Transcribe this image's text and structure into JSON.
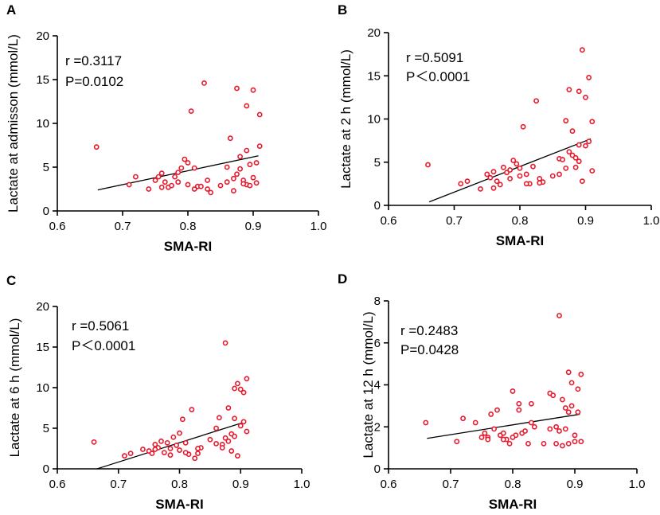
{
  "chart_data": [
    {
      "type": "scatter",
      "panel": "A",
      "xlabel": "SMA-RI",
      "ylabel": "Lactate at admisson (mmol/L)",
      "xlim": [
        0.6,
        1.0
      ],
      "ylim": [
        0,
        20
      ],
      "xticks": [
        0.6,
        0.7,
        0.8,
        0.9,
        1.0
      ],
      "xtick_labels": [
        "0.6",
        "0.7",
        "0.8",
        "0.9",
        "1.0"
      ],
      "yticks": [
        0,
        5,
        10,
        15,
        20
      ],
      "ytick_labels": [
        "0",
        "5",
        "10",
        "15",
        "20"
      ],
      "stats": {
        "r": "r =0.3117",
        "p": "P=0.0102"
      },
      "regression": {
        "x": [
          0.662,
          0.908
        ],
        "y": [
          2.4,
          6.3
        ]
      },
      "x": [
        0.66,
        0.71,
        0.72,
        0.74,
        0.75,
        0.755,
        0.76,
        0.765,
        0.77,
        0.775,
        0.78,
        0.785,
        0.79,
        0.795,
        0.8,
        0.805,
        0.81,
        0.815,
        0.82,
        0.825,
        0.83,
        0.835,
        0.85,
        0.86,
        0.865,
        0.87,
        0.875,
        0.88,
        0.885,
        0.89,
        0.89,
        0.895,
        0.9,
        0.905,
        0.91,
        0.76,
        0.785,
        0.8,
        0.81,
        0.83,
        0.87,
        0.88,
        0.89,
        0.9,
        0.86,
        0.875,
        0.885,
        0.895,
        0.91,
        0.905
      ],
      "y": [
        7.3,
        3.0,
        3.9,
        2.5,
        3.5,
        3.9,
        4.3,
        3.3,
        2.7,
        2.9,
        3.9,
        3.3,
        4.9,
        5.9,
        3.0,
        11.4,
        4.9,
        2.8,
        2.8,
        14.6,
        3.5,
        2.1,
        2.9,
        3.3,
        8.3,
        3.7,
        14.0,
        6.2,
        3.5,
        12.0,
        6.9,
        5.3,
        13.8,
        5.5,
        11.0,
        2.7,
        4.4,
        5.5,
        2.5,
        2.5,
        2.3,
        4.8,
        3.0,
        3.8,
        5.0,
        4.2,
        3.1,
        2.9,
        7.4,
        3.2
      ]
    },
    {
      "type": "scatter",
      "panel": "B",
      "xlabel": "SMA-RI",
      "ylabel": "Lactate at 2 h (mmol/L)",
      "xlim": [
        0.6,
        1.0
      ],
      "ylim": [
        0,
        20
      ],
      "xticks": [
        0.6,
        0.7,
        0.8,
        0.9,
        1.0
      ],
      "xtick_labels": [
        "0.6",
        "0.7",
        "0.8",
        "0.9",
        "1.0"
      ],
      "yticks": [
        0,
        5,
        10,
        15,
        20
      ],
      "ytick_labels": [
        "0",
        "5",
        "10",
        "15",
        "20"
      ],
      "stats": {
        "r": "r =0.5091",
        "p": "P＜0.0001"
      },
      "regression": {
        "x": [
          0.662,
          0.908
        ],
        "y": [
          0.4,
          7.7
        ]
      },
      "x": [
        0.66,
        0.71,
        0.72,
        0.74,
        0.75,
        0.755,
        0.76,
        0.765,
        0.77,
        0.775,
        0.78,
        0.785,
        0.79,
        0.795,
        0.8,
        0.805,
        0.81,
        0.815,
        0.82,
        0.825,
        0.83,
        0.835,
        0.85,
        0.86,
        0.865,
        0.87,
        0.875,
        0.88,
        0.885,
        0.89,
        0.89,
        0.895,
        0.9,
        0.905,
        0.91,
        0.76,
        0.785,
        0.8,
        0.81,
        0.83,
        0.87,
        0.88,
        0.89,
        0.9,
        0.86,
        0.875,
        0.885,
        0.895,
        0.91,
        0.905
      ],
      "y": [
        4.7,
        2.5,
        2.8,
        1.9,
        3.6,
        3.2,
        3.9,
        2.8,
        2.4,
        4.4,
        3.8,
        4.1,
        5.2,
        4.8,
        4.3,
        9.1,
        3.6,
        2.5,
        4.5,
        12.1,
        3.1,
        2.7,
        3.4,
        5.4,
        5.3,
        9.8,
        13.4,
        8.6,
        4.4,
        13.2,
        7.0,
        18.0,
        12.5,
        14.8,
        9.7,
        2.0,
        3.1,
        3.4,
        2.5,
        2.6,
        4.3,
        5.8,
        5.1,
        6.9,
        3.6,
        6.2,
        5.5,
        2.8,
        4.0,
        7.4
      ]
    },
    {
      "type": "scatter",
      "panel": "C",
      "xlabel": "SMA-RI",
      "ylabel": "Lactate at 6 h (mmol/L)",
      "xlim": [
        0.6,
        1.0
      ],
      "ylim": [
        0,
        20
      ],
      "xticks": [
        0.6,
        0.7,
        0.8,
        0.9,
        1.0
      ],
      "xtick_labels": [
        "0.6",
        "0.7",
        "0.8",
        "0.9",
        "1.0"
      ],
      "yticks": [
        0,
        5,
        10,
        15,
        20
      ],
      "ytick_labels": [
        "0",
        "5",
        "10",
        "15",
        "20"
      ],
      "stats": {
        "r": "r =0.5061",
        "p": "P＜0.0001"
      },
      "regression": {
        "x": [
          0.665,
          0.908
        ],
        "y": [
          0.0,
          5.8
        ]
      },
      "x": [
        0.66,
        0.71,
        0.72,
        0.74,
        0.75,
        0.755,
        0.76,
        0.765,
        0.77,
        0.775,
        0.78,
        0.785,
        0.79,
        0.795,
        0.8,
        0.805,
        0.81,
        0.815,
        0.82,
        0.825,
        0.83,
        0.835,
        0.85,
        0.86,
        0.865,
        0.87,
        0.875,
        0.88,
        0.885,
        0.89,
        0.89,
        0.895,
        0.9,
        0.905,
        0.91,
        0.76,
        0.785,
        0.8,
        0.81,
        0.83,
        0.87,
        0.88,
        0.89,
        0.9,
        0.86,
        0.875,
        0.885,
        0.895,
        0.91,
        0.905
      ],
      "y": [
        3.3,
        1.6,
        1.9,
        2.4,
        2.2,
        1.9,
        3.0,
        2.6,
        3.4,
        2.0,
        3.2,
        2.5,
        3.9,
        2.9,
        4.4,
        6.1,
        3.2,
        1.8,
        7.3,
        1.3,
        1.9,
        2.6,
        3.6,
        5.0,
        6.3,
        3.0,
        15.5,
        7.5,
        4.3,
        9.9,
        6.2,
        10.5,
        9.8,
        9.4,
        11.1,
        2.4,
        1.7,
        2.3,
        2.0,
        2.5,
        2.6,
        3.4,
        4.0,
        5.3,
        3.1,
        3.8,
        2.2,
        1.6,
        4.6,
        5.8
      ]
    },
    {
      "type": "scatter",
      "panel": "D",
      "xlabel": "SMA-RI",
      "ylabel": "Lactate at 12 h (mmol/L)",
      "xlim": [
        0.6,
        1.0
      ],
      "ylim": [
        0,
        8
      ],
      "xticks": [
        0.6,
        0.7,
        0.8,
        0.9,
        1.0
      ],
      "xtick_labels": [
        "0.6",
        "0.7",
        "0.8",
        "0.9",
        "1.0"
      ],
      "yticks": [
        0,
        2,
        4,
        6,
        8
      ],
      "ytick_labels": [
        "0",
        "2",
        "4",
        "6",
        "8"
      ],
      "stats": {
        "r": "r =0.2483",
        "p": "P=0.0428"
      },
      "regression": {
        "x": [
          0.662,
          0.908
        ],
        "y": [
          1.45,
          2.6
        ]
      },
      "x": [
        0.66,
        0.71,
        0.72,
        0.74,
        0.75,
        0.755,
        0.76,
        0.765,
        0.77,
        0.775,
        0.78,
        0.785,
        0.79,
        0.795,
        0.8,
        0.805,
        0.81,
        0.815,
        0.82,
        0.825,
        0.83,
        0.835,
        0.85,
        0.86,
        0.865,
        0.87,
        0.875,
        0.88,
        0.885,
        0.89,
        0.89,
        0.895,
        0.9,
        0.905,
        0.91,
        0.76,
        0.785,
        0.8,
        0.81,
        0.83,
        0.87,
        0.88,
        0.89,
        0.9,
        0.86,
        0.875,
        0.885,
        0.895,
        0.91,
        0.905
      ],
      "y": [
        2.2,
        1.3,
        2.4,
        2.2,
        1.5,
        1.7,
        1.5,
        2.6,
        1.9,
        2.8,
        1.6,
        1.7,
        1.4,
        1.2,
        3.7,
        1.6,
        3.1,
        1.7,
        1.8,
        1.2,
        3.1,
        2.0,
        1.2,
        3.6,
        3.5,
        1.2,
        7.3,
        1.1,
        1.9,
        1.2,
        4.6,
        3.0,
        1.3,
        3.8,
        4.5,
        1.4,
        1.4,
        1.5,
        2.8,
        2.2,
        2.0,
        3.3,
        2.7,
        1.6,
        1.9,
        1.8,
        2.9,
        4.1,
        1.3,
        2.7
      ]
    }
  ]
}
